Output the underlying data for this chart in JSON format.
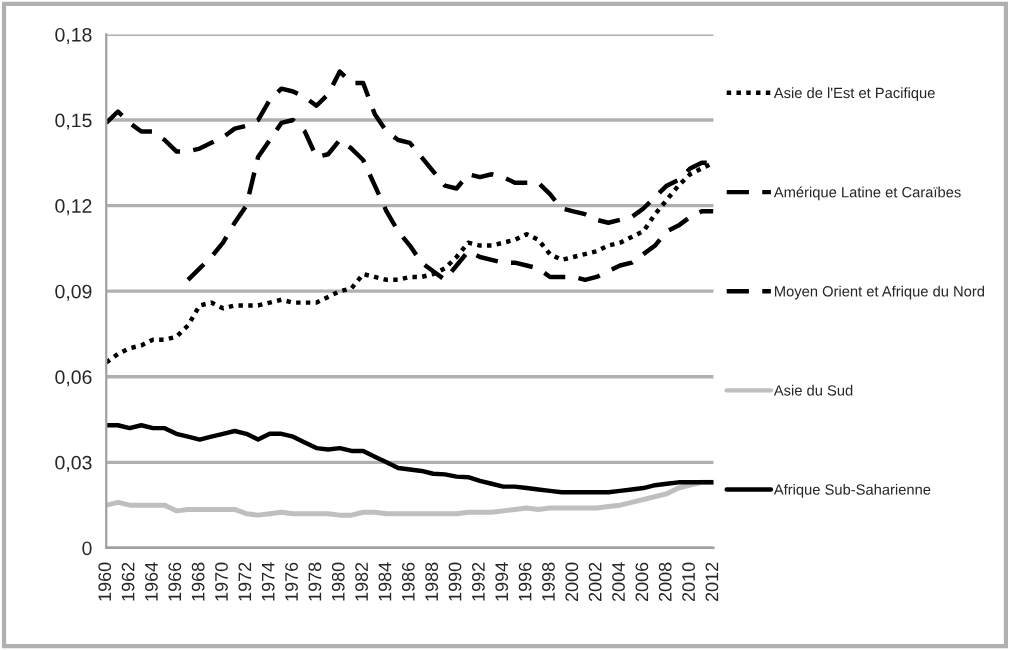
{
  "chart_data": {
    "type": "line",
    "x": [
      1960,
      1961,
      1962,
      1963,
      1964,
      1965,
      1966,
      1967,
      1968,
      1969,
      1970,
      1971,
      1972,
      1973,
      1974,
      1975,
      1976,
      1977,
      1978,
      1979,
      1980,
      1981,
      1982,
      1983,
      1984,
      1985,
      1986,
      1987,
      1988,
      1989,
      1990,
      1991,
      1992,
      1993,
      1994,
      1995,
      1996,
      1997,
      1998,
      1999,
      2000,
      2001,
      2002,
      2003,
      2004,
      2005,
      2006,
      2007,
      2008,
      2009,
      2010,
      2011,
      2012
    ],
    "series": [
      {
        "name": "Asie de l'Est et Pacifique",
        "color": "#000000",
        "line_style": "dotted",
        "values": [
          0.065,
          0.068,
          0.07,
          0.071,
          0.073,
          0.073,
          0.074,
          0.078,
          0.085,
          0.086,
          0.084,
          0.085,
          0.085,
          0.085,
          0.086,
          0.087,
          0.086,
          0.086,
          0.086,
          0.088,
          0.09,
          0.091,
          0.096,
          0.095,
          0.094,
          0.094,
          0.095,
          0.095,
          0.096,
          0.098,
          0.102,
          0.107,
          0.106,
          0.106,
          0.107,
          0.108,
          0.11,
          0.108,
          0.103,
          0.101,
          0.102,
          0.103,
          0.104,
          0.106,
          0.107,
          0.109,
          0.111,
          0.117,
          0.122,
          0.127,
          0.131,
          0.133,
          0.135
        ]
      },
      {
        "name": "Amérique Latine et Caraïbes",
        "color": "#000000",
        "line_style": "dashed",
        "values": [
          0.149,
          0.153,
          0.149,
          0.146,
          0.146,
          0.143,
          0.139,
          0.139,
          0.14,
          0.142,
          0.144,
          0.147,
          0.148,
          0.15,
          0.157,
          0.161,
          0.16,
          0.158,
          0.155,
          0.159,
          0.167,
          0.163,
          0.163,
          0.152,
          0.146,
          0.143,
          0.142,
          0.137,
          0.132,
          0.127,
          0.126,
          0.131,
          0.13,
          0.131,
          0.13,
          0.128,
          0.128,
          0.128,
          0.124,
          0.119,
          0.118,
          0.117,
          0.115,
          0.114,
          0.115,
          0.116,
          0.119,
          0.123,
          0.127,
          0.129,
          0.133,
          0.135,
          0.135
        ]
      },
      {
        "name": "Moyen Orient et Afrique du Nord",
        "color": "#000000",
        "line_style": "dashed",
        "x": [
          1967,
          1968,
          1969,
          1970,
          1971,
          1972,
          1973,
          1974,
          1975,
          1976,
          1977,
          1978,
          1979,
          1980,
          1981,
          1982,
          1983,
          1984,
          1985,
          1986,
          1987,
          1988,
          1989,
          1990,
          1991,
          1992,
          1993,
          1994,
          1995,
          1996,
          1997,
          1998,
          1999,
          2000,
          2001,
          2002,
          2003,
          2004,
          2005,
          2006,
          2007,
          2008,
          2009,
          2010,
          2011,
          2012
        ],
        "values": [
          0.094,
          0.098,
          0.102,
          0.107,
          0.114,
          0.12,
          0.137,
          0.143,
          0.149,
          0.15,
          0.146,
          0.137,
          0.138,
          0.143,
          0.14,
          0.136,
          0.127,
          0.118,
          0.111,
          0.106,
          0.1,
          0.097,
          0.094,
          0.099,
          0.104,
          0.102,
          0.101,
          0.1,
          0.1,
          0.099,
          0.098,
          0.095,
          0.095,
          0.095,
          0.094,
          0.095,
          0.097,
          0.099,
          0.1,
          0.103,
          0.106,
          0.111,
          0.113,
          0.116,
          0.118,
          0.118
        ]
      },
      {
        "name": "Asie du Sud",
        "color": "#bfbfbf",
        "line_style": "solid",
        "values": [
          0.015,
          0.016,
          0.015,
          0.015,
          0.015,
          0.015,
          0.013,
          0.0135,
          0.0135,
          0.0135,
          0.0135,
          0.0135,
          0.012,
          0.0115,
          0.012,
          0.0125,
          0.012,
          0.012,
          0.012,
          0.012,
          0.0115,
          0.0115,
          0.0125,
          0.0125,
          0.012,
          0.012,
          0.012,
          0.012,
          0.012,
          0.012,
          0.012,
          0.0125,
          0.0125,
          0.0125,
          0.013,
          0.0135,
          0.014,
          0.0135,
          0.014,
          0.014,
          0.014,
          0.014,
          0.014,
          0.0145,
          0.015,
          0.016,
          0.017,
          0.018,
          0.019,
          0.021,
          0.022,
          0.023,
          0.023
        ]
      },
      {
        "name": "Afrique Sub-Saharienne",
        "color": "#000000",
        "line_style": "solid",
        "values": [
          0.043,
          0.043,
          0.042,
          0.043,
          0.042,
          0.042,
          0.04,
          0.039,
          0.038,
          0.039,
          0.04,
          0.041,
          0.04,
          0.038,
          0.04,
          0.04,
          0.039,
          0.037,
          0.035,
          0.0345,
          0.035,
          0.034,
          0.034,
          0.032,
          0.03,
          0.028,
          0.0275,
          0.027,
          0.026,
          0.0258,
          0.025,
          0.0248,
          0.0235,
          0.0225,
          0.0215,
          0.0215,
          0.021,
          0.0205,
          0.02,
          0.0195,
          0.0195,
          0.0195,
          0.0195,
          0.0195,
          0.02,
          0.0205,
          0.021,
          0.022,
          0.0225,
          0.023,
          0.023,
          0.023,
          0.023
        ]
      }
    ],
    "xlim": [
      1960,
      2012
    ],
    "xticks": [
      1960,
      1962,
      1964,
      1966,
      1968,
      1970,
      1972,
      1974,
      1976,
      1978,
      1980,
      1982,
      1984,
      1986,
      1988,
      1990,
      1992,
      1994,
      1996,
      1998,
      2000,
      2002,
      2004,
      2006,
      2008,
      2010,
      2012
    ],
    "ylim": [
      0,
      0.18
    ],
    "yticks": [
      0,
      {
        "value": 0.03,
        "label": "0,03"
      },
      {
        "value": 0.06,
        "label": "0,06"
      },
      {
        "value": 0.09,
        "label": "0,09"
      },
      {
        "value": 0.12,
        "label": "0,12"
      },
      {
        "value": 0.15,
        "label": "0,15"
      },
      {
        "value": 0.18,
        "label": "0,18"
      }
    ],
    "grid": "y",
    "legend": "right",
    "marker": "none"
  }
}
